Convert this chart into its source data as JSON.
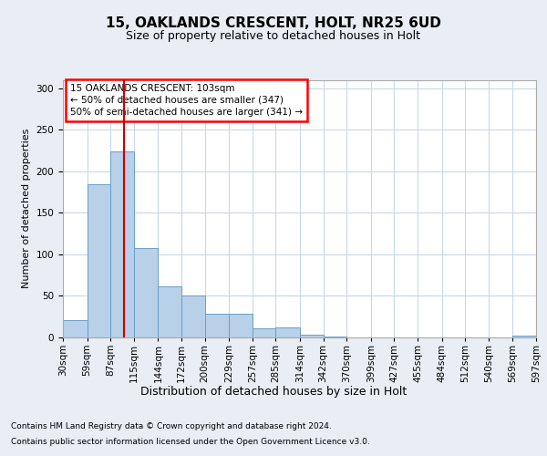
{
  "title1": "15, OAKLANDS CRESCENT, HOLT, NR25 6UD",
  "title2": "Size of property relative to detached houses in Holt",
  "xlabel": "Distribution of detached houses by size in Holt",
  "ylabel": "Number of detached properties",
  "footer1": "Contains HM Land Registry data © Crown copyright and database right 2024.",
  "footer2": "Contains public sector information licensed under the Open Government Licence v3.0.",
  "annotation_title": "15 OAKLANDS CRESCENT: 103sqm",
  "annotation_line2": "← 50% of detached houses are smaller (347)",
  "annotation_line3": "50% of semi-detached houses are larger (341) →",
  "bar_color": "#b8d0e8",
  "bar_edge_color": "#6aa0c8",
  "vline_color": "#cc0000",
  "vline_x": 103,
  "bin_edges": [
    30,
    59,
    87,
    115,
    144,
    172,
    200,
    229,
    257,
    285,
    314,
    342,
    370,
    399,
    427,
    455,
    484,
    512,
    540,
    569,
    597
  ],
  "bar_heights": [
    21,
    184,
    224,
    107,
    61,
    51,
    29,
    29,
    11,
    12,
    3,
    1,
    0,
    0,
    0,
    0,
    0,
    0,
    0,
    2
  ],
  "tick_labels": [
    "30sqm",
    "59sqm",
    "87sqm",
    "115sqm",
    "144sqm",
    "172sqm",
    "200sqm",
    "229sqm",
    "257sqm",
    "285sqm",
    "314sqm",
    "342sqm",
    "370sqm",
    "399sqm",
    "427sqm",
    "455sqm",
    "484sqm",
    "512sqm",
    "540sqm",
    "569sqm",
    "597sqm"
  ],
  "ylim": [
    0,
    310
  ],
  "yticks": [
    0,
    50,
    100,
    150,
    200,
    250,
    300
  ],
  "bg_color": "#e8eef4",
  "plot_bg_color": "#ffffff",
  "grid_color": "#c8d8e8",
  "title1_fontsize": 11,
  "title2_fontsize": 9,
  "xlabel_fontsize": 9,
  "ylabel_fontsize": 8,
  "tick_fontsize": 7.5,
  "footer_fontsize": 6.5
}
